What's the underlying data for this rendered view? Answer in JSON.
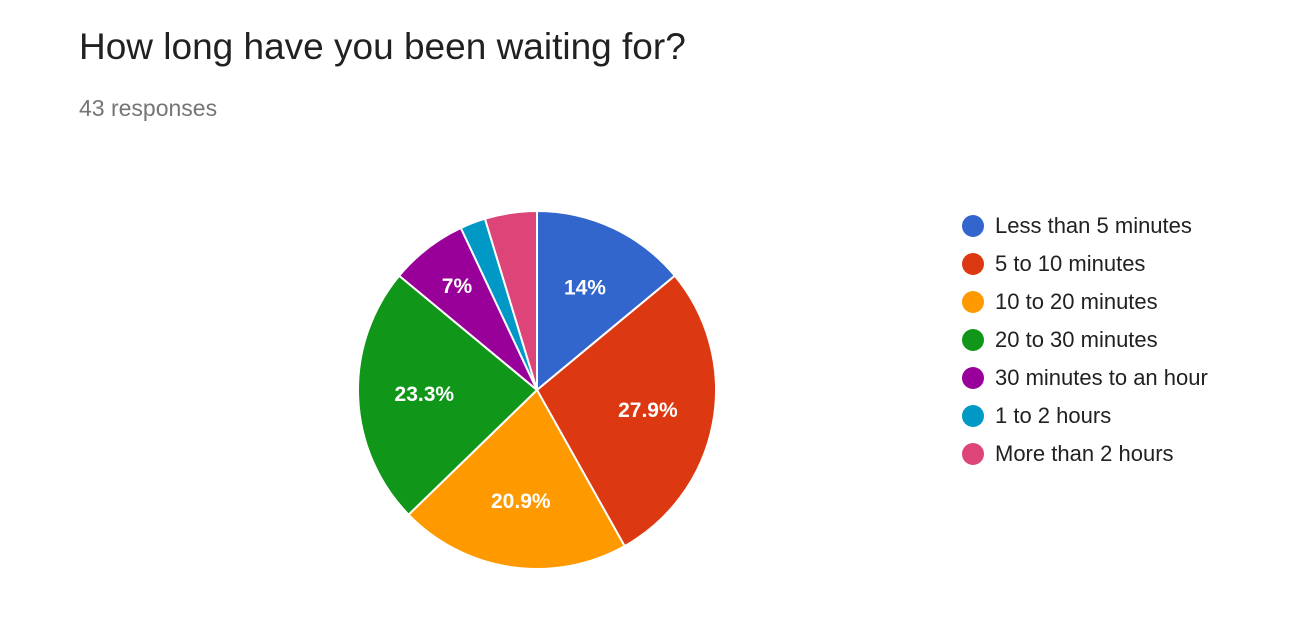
{
  "header": {
    "title": "How long have you been waiting for?",
    "responses": "43 responses"
  },
  "chart_data": {
    "type": "pie",
    "title": "How long have you been waiting for?",
    "total_responses": 43,
    "legend_position": "right",
    "start_angle_deg": 90,
    "direction": "clockwise",
    "slices": [
      {
        "label": "Less than 5 minutes",
        "value": 14.0,
        "data_label": "14%",
        "color": "#3366cc"
      },
      {
        "label": "5 to 10 minutes",
        "value": 27.9,
        "data_label": "27.9%",
        "color": "#dc3912"
      },
      {
        "label": "10 to 20 minutes",
        "value": 20.9,
        "data_label": "20.9%",
        "color": "#ff9900"
      },
      {
        "label": "20 to 30 minutes",
        "value": 23.3,
        "data_label": "23.3%",
        "color": "#109618"
      },
      {
        "label": "30 minutes to an hour",
        "value": 7.0,
        "data_label": "7%",
        "color": "#990099"
      },
      {
        "label": "1 to 2 hours",
        "value": 2.3,
        "data_label": "",
        "color": "#0099c6"
      },
      {
        "label": "More than 2 hours",
        "value": 4.7,
        "data_label": "",
        "color": "#dd4477"
      }
    ]
  }
}
